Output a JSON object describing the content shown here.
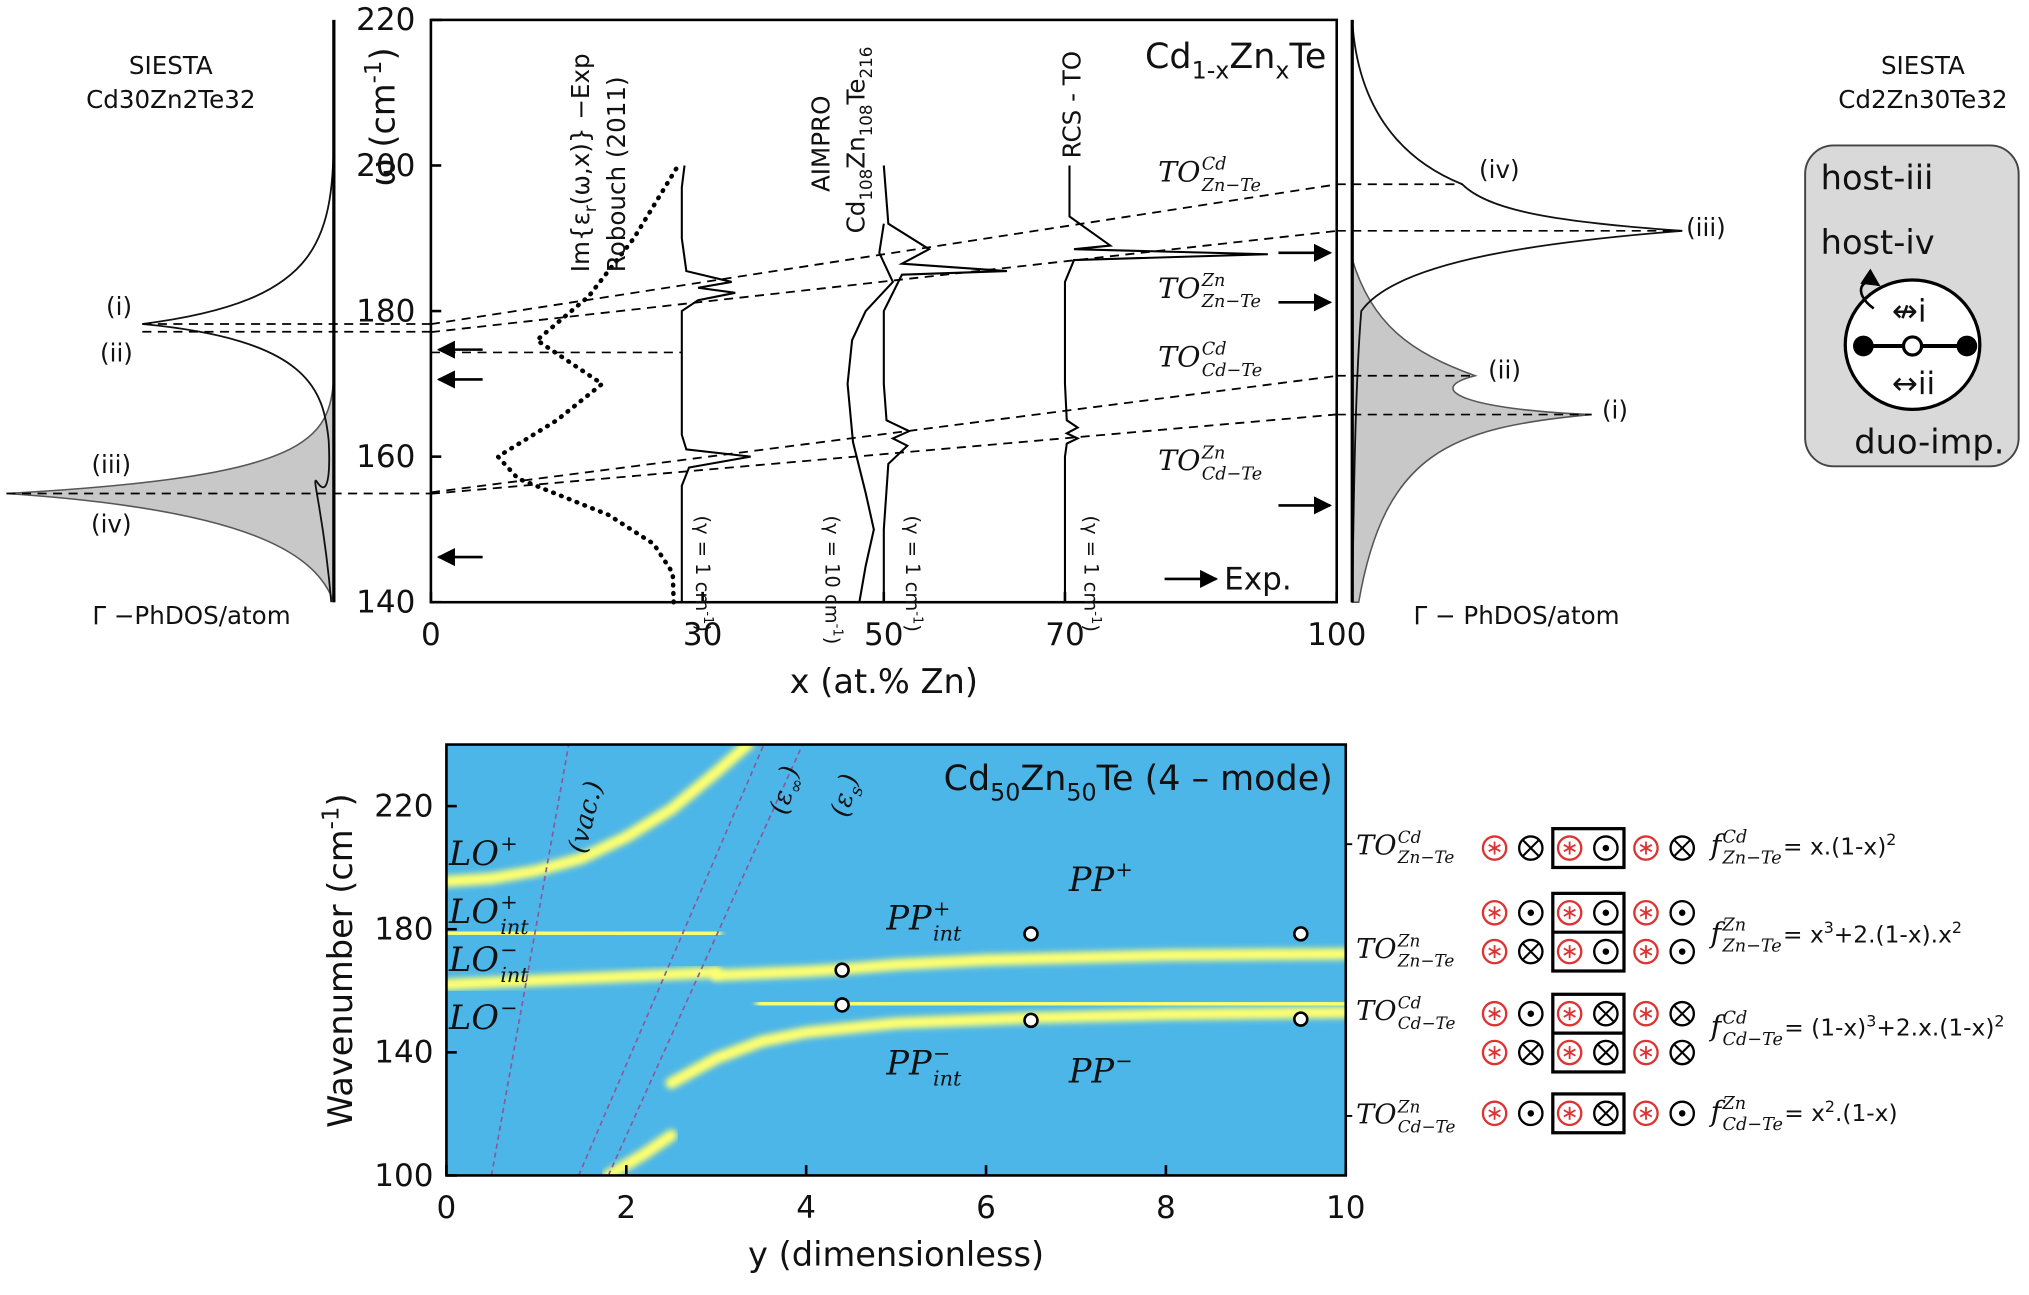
{
  "chart_data": [
    {
      "type": "line",
      "title": [
        "Cd",
        "1-x",
        "Zn",
        "x",
        "Te"
      ],
      "x_label": "x (at.% Zn)",
      "y_label": [
        "ω (cm",
        "-1",
        ")"
      ],
      "xlim": [
        0,
        100
      ],
      "xticks": [
        0,
        30,
        50,
        70,
        100
      ],
      "ylim": [
        140,
        220
      ],
      "yticks": [
        140,
        160,
        180,
        200,
        220
      ],
      "series": [
        {
          "style": "dashed",
          "color": "#000000",
          "x": [
            0,
            100
          ],
          "values": [
            178.2,
            197.4
          ]
        },
        {
          "style": "dashed",
          "color": "#000000",
          "x": [
            0,
            100
          ],
          "values": [
            177.1,
            191.0
          ]
        },
        {
          "style": "dashed",
          "color": "#000000",
          "x": [
            0,
            100
          ],
          "values": [
            155.1,
            171.1
          ]
        },
        {
          "style": "dashed",
          "color": "#000000",
          "x": [
            0,
            100
          ],
          "values": [
            154.9,
            165.8
          ]
        },
        {
          "style": "dotted",
          "color": "#000000",
          "x": [
            26.8,
            26.7,
            24.6,
            19.6,
            9.6,
            7.4,
            13.9,
            18.9,
            11.7,
            17.4,
            22.4,
            27.1
          ],
          "values": [
            140,
            144,
            148,
            152,
            157,
            160,
            165,
            170,
            176,
            182,
            190,
            199.6
          ]
        },
        {
          "style": "solid",
          "color": "#000000",
          "x": [
            27.7,
            27.7,
            28.5,
            35.3,
            28.2,
            27.7,
            27.7,
            29.5,
            33.6,
            29.5,
            33.2,
            28.2,
            27.7,
            27.7,
            28
          ],
          "values": [
            140,
            156,
            158.5,
            160,
            161,
            163,
            180,
            181.5,
            182.5,
            183.2,
            184,
            185.5,
            190,
            197,
            200
          ]
        },
        {
          "style": "solid",
          "color": "#000000",
          "x": [
            47.3,
            48,
            48.9,
            48,
            46.6,
            46,
            46.5,
            48,
            51,
            49.5,
            50
          ],
          "values": [
            140,
            145,
            150,
            155,
            162,
            170,
            176,
            180,
            184,
            188,
            192
          ]
        },
        {
          "style": "solid",
          "color": "#000000",
          "x": [
            50,
            50,
            50.5,
            52.6,
            51,
            52.8,
            50.3,
            50,
            50,
            52,
            63.6,
            52,
            55,
            50.5,
            50
          ],
          "values": [
            140,
            150,
            159,
            161.5,
            162.5,
            163.5,
            165,
            170,
            180,
            185,
            185.5,
            186.5,
            188.5,
            192,
            200
          ]
        },
        {
          "style": "solid",
          "color": "#000000",
          "x": [
            70,
            70,
            70.2,
            71.4,
            70.2,
            71.4,
            70.2,
            70,
            70,
            71,
            92.4,
            71,
            75,
            70.5,
            70.5
          ],
          "values": [
            140,
            160,
            161.8,
            162.5,
            163.2,
            164,
            165,
            170,
            184,
            187,
            187.8,
            188.5,
            189,
            193,
            200
          ]
        }
      ],
      "exp_arrows": {
        "label": "Exp.",
        "left": [
          174.7,
          170.6,
          146.2
        ],
        "right": [
          188,
          181.2,
          153.3
        ]
      },
      "annotations": {
        "exp_curve": [
          "Im{ε",
          "r",
          "(ω,x)} −Exp"
        ],
        "exp_ref": "Robouch (2011)",
        "aimpro": "AIMPRO",
        "aimpro_cell": [
          "Cd",
          "108",
          "Zn",
          "108",
          "Te",
          "216"
        ],
        "rcs": "RCS - TO",
        "gamma_labels": [
          [
            "(γ = 1 cm",
            "-1",
            ")"
          ],
          [
            "(γ = 10 cm",
            "-1",
            ")"
          ],
          [
            "(γ = 1 cm",
            "-1",
            ")"
          ],
          [
            "(γ = 1 cm",
            "-1",
            ")"
          ]
        ],
        "modes": [
          {
            "symbol": "TO",
            "sup": "Cd",
            "sub": "Zn−Te"
          },
          {
            "symbol": "TO",
            "sup": "Zn",
            "sub": "Zn−Te"
          },
          {
            "symbol": "TO",
            "sup": "Cd",
            "sub": "Cd−Te"
          },
          {
            "symbol": "TO",
            "sup": "Zn",
            "sub": "Cd−Te"
          }
        ]
      }
    },
    {
      "type": "heatmap",
      "title": [
        "Cd",
        "50",
        "Zn",
        "50",
        "Te (4 – mode)"
      ],
      "x_label": "y (dimensionless)",
      "y_label": [
        "Wavenumber (cm",
        "-1",
        ")"
      ],
      "xlim": [
        0,
        10
      ],
      "xticks": [
        0,
        2,
        4,
        6,
        8,
        10
      ],
      "ylim": [
        100,
        240
      ],
      "yticks": [
        100,
        140,
        180,
        220
      ],
      "background": "#4db6e8",
      "series": [
        {
          "style": "ridge",
          "color": "#ffff6e",
          "x": [
            0,
            0.5,
            1,
            1.5,
            2,
            2.5,
            3,
            3.35
          ],
          "values": [
            195.5,
            196.5,
            199,
            203,
            210,
            219,
            231,
            240
          ]
        },
        {
          "style": "ridge",
          "color": "#ffff6e",
          "x": [
            0,
            3
          ],
          "values": [
            179,
            178.5
          ]
        },
        {
          "style": "ridge",
          "color": "#ffff6e",
          "x": [
            0,
            3
          ],
          "values": [
            162,
            166
          ]
        },
        {
          "style": "ridge",
          "color": "#ffff6e",
          "x": [
            3,
            4,
            4.4,
            5,
            6,
            8,
            10
          ],
          "values": [
            165,
            166.3,
            167,
            168.5,
            170,
            171.5,
            172
          ]
        },
        {
          "style": "ridge",
          "color": "#ffff6e",
          "x": [
            2.5,
            3,
            3.5,
            4,
            5,
            6.5,
            8,
            10
          ],
          "values": [
            130,
            138,
            143.5,
            146.5,
            149.5,
            151.2,
            152.3,
            153
          ]
        },
        {
          "style": "ridge",
          "color": "#ffff6e",
          "x": [
            3.5,
            10
          ],
          "values": [
            156,
            155.5
          ]
        },
        {
          "style": "ridge",
          "color": "#ffff6e",
          "x": [
            3,
            10
          ],
          "values": [
            178.5,
            178.5
          ]
        },
        {
          "style": "ridge",
          "color": "#ffff6e",
          "x": [
            1.8,
            2.2,
            2.5
          ],
          "values": [
            100,
            107,
            113
          ]
        },
        {
          "style": "dashed",
          "color": "#8a5a9c",
          "x": [
            0.5,
            1.36
          ],
          "values": [
            100,
            240
          ]
        },
        {
          "style": "dashed",
          "color": "#8a5a9c",
          "x": [
            1.47,
            3.53
          ],
          "values": [
            100,
            240
          ]
        },
        {
          "style": "dashed",
          "color": "#8a5a9c",
          "x": [
            1.8,
            3.96
          ],
          "values": [
            100,
            240
          ]
        }
      ],
      "points": {
        "x": [
          4.4,
          4.4,
          6.5,
          6.5,
          9.5,
          9.5
        ],
        "values": [
          166.7,
          155.4,
          178.5,
          150.4,
          178.5,
          150.8
        ]
      },
      "annotations": {
        "branches": [
          {
            "symbol": "LO",
            "sup": "+"
          },
          {
            "symbol": "LO",
            "sup": "+",
            "sub": "int"
          },
          {
            "symbol": "LO",
            "sup": "−",
            "sub": "int"
          },
          {
            "symbol": "LO",
            "sup": "−"
          }
        ],
        "polaritons": [
          {
            "symbol": "PP",
            "sup": "+",
            "sub": "int"
          },
          {
            "symbol": "PP",
            "sup": "−",
            "sub": "int"
          },
          {
            "symbol": "PP",
            "sup": "+"
          },
          {
            "symbol": "PP",
            "sup": "−"
          }
        ],
        "lines": [
          [
            "(vac.)"
          ],
          [
            "(ε",
            "∞",
            ")"
          ],
          [
            "(ε",
            "s",
            ")"
          ]
        ],
        "modes": [
          {
            "symbol": "TO",
            "sup": "Cd",
            "sub": "Zn−Te"
          },
          {
            "symbol": "TO",
            "sup": "Zn",
            "sub": "Zn−Te"
          },
          {
            "symbol": "TO",
            "sup": "Cd",
            "sub": "Cd−Te"
          },
          {
            "symbol": "TO",
            "sup": "Zn",
            "sub": "Cd−Te"
          }
        ],
        "fractions": [
          {
            "symbol": "f",
            "sup": "Cd",
            "sub": "Zn−Te",
            "expr": [
              "= x.(1-x)",
              "2"
            ]
          },
          {
            "symbol": "f",
            "sup": "Zn",
            "sub": "Zn−Te",
            "expr": [
              "= x",
              "3",
              "+2.(1-x).x",
              "2"
            ]
          },
          {
            "symbol": "f",
            "sup": "Cd",
            "sub": "Cd−Te",
            "expr": [
              "= (1-x)",
              "3",
              "+2.x.(1-x)",
              "2"
            ]
          },
          {
            "symbol": "f",
            "sup": "Zn",
            "sub": "Cd−Te",
            "expr": [
              "= x",
              "2",
              ".(1-x)"
            ]
          }
        ]
      }
    }
  ],
  "side_panels": {
    "left": {
      "method": "SIESTA",
      "cell": "Cd30Zn2Te32",
      "axis": "Γ −PhDOS/atom",
      "peaks": [
        "(i)",
        "(ii)",
        "(iii)",
        "(iv)"
      ]
    },
    "right": {
      "method": "SIESTA",
      "cell": "Cd2Zn30Te32",
      "axis": "Γ − PhDOS/atom",
      "peaks": [
        "(iv)",
        "(iii)",
        "(ii)",
        "(i)"
      ]
    },
    "schematic": {
      "labels": [
        "host-iii",
        "host-iv",
        "↮i",
        "↔ii",
        "duo-imp."
      ]
    }
  }
}
